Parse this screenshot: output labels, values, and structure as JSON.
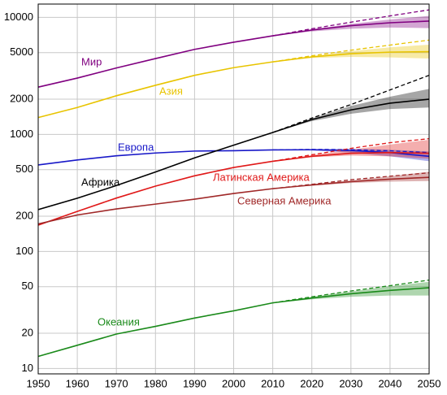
{
  "chart_data": {
    "type": "line",
    "log_y": true,
    "grid": true,
    "x": [
      1950,
      1960,
      1970,
      1980,
      1990,
      2000,
      2010,
      2020,
      2030,
      2040,
      2050
    ],
    "xlim": [
      1950,
      2050
    ],
    "xticks": [
      1950,
      1960,
      1970,
      1980,
      1990,
      2000,
      2010,
      2020,
      2030,
      2040,
      2050
    ],
    "ylim": [
      9,
      13000
    ],
    "yticks": [
      10,
      20,
      50,
      100,
      200,
      500,
      1000,
      2000,
      5000,
      10000
    ],
    "series": [
      {
        "name": "Мир",
        "color": "#800080",
        "values": [
          2536,
          3030,
          3700,
          4450,
          5330,
          6140,
          6960,
          7800,
          8500,
          9000,
          9300
        ],
        "projection_high": [
          null,
          null,
          null,
          null,
          null,
          null,
          6960,
          8000,
          9100,
          10300,
          11600
        ],
        "band_low": [
          null,
          null,
          null,
          null,
          null,
          null,
          6960,
          7600,
          8000,
          8200,
          8100
        ],
        "band_high": [
          null,
          null,
          null,
          null,
          null,
          null,
          6960,
          7900,
          8800,
          9600,
          10300
        ]
      },
      {
        "name": "Азия",
        "color": "#e8c400",
        "values": [
          1395,
          1700,
          2140,
          2630,
          3200,
          3720,
          4170,
          4600,
          4900,
          5050,
          5100
        ],
        "projection_high": [
          null,
          null,
          null,
          null,
          null,
          null,
          4170,
          4700,
          5250,
          5800,
          6400
        ],
        "band_low": [
          null,
          null,
          null,
          null,
          null,
          null,
          4170,
          4500,
          4600,
          4550,
          4450
        ],
        "band_high": [
          null,
          null,
          null,
          null,
          null,
          null,
          4170,
          4650,
          5150,
          5550,
          5850
        ]
      },
      {
        "name": "Европа",
        "color": "#1818c8",
        "values": [
          549,
          605,
          657,
          694,
          721,
          726,
          738,
          740,
          728,
          700,
          650
        ],
        "projection_high": [
          null,
          null,
          null,
          null,
          null,
          null,
          738,
          745,
          740,
          725,
          700
        ],
        "band_low": [
          null,
          null,
          null,
          null,
          null,
          null,
          738,
          730,
          700,
          650,
          590
        ],
        "band_high": [
          null,
          null,
          null,
          null,
          null,
          null,
          738,
          750,
          755,
          740,
          715
        ]
      },
      {
        "name": "Африка",
        "color": "#000000",
        "values": [
          228,
          285,
          366,
          478,
          630,
          810,
          1040,
          1340,
          1620,
          1850,
          2000
        ],
        "projection_high": [
          null,
          null,
          null,
          null,
          null,
          null,
          1040,
          1380,
          1800,
          2400,
          3200
        ],
        "band_low": [
          null,
          null,
          null,
          null,
          null,
          null,
          1040,
          1300,
          1500,
          1650,
          1700
        ],
        "band_high": [
          null,
          null,
          null,
          null,
          null,
          null,
          1040,
          1370,
          1750,
          2100,
          2450
        ]
      },
      {
        "name": "Латинская Америка",
        "color": "#e01818",
        "values": [
          168,
          220,
          286,
          362,
          443,
          522,
          590,
          650,
          690,
          700,
          690
        ],
        "projection_high": [
          null,
          null,
          null,
          null,
          null,
          null,
          590,
          670,
          760,
          850,
          920
        ],
        "band_low": [
          null,
          null,
          null,
          null,
          null,
          null,
          590,
          640,
          660,
          650,
          620
        ],
        "band_high": [
          null,
          null,
          null,
          null,
          null,
          null,
          590,
          665,
          740,
          820,
          900
        ]
      },
      {
        "name": "Северная Америка",
        "color": "#a02828",
        "values": [
          172,
          205,
          231,
          254,
          280,
          313,
          344,
          370,
          395,
          415,
          430
        ],
        "projection_high": [
          null,
          null,
          null,
          null,
          null,
          null,
          344,
          375,
          410,
          440,
          470
        ],
        "band_low": [
          null,
          null,
          null,
          null,
          null,
          null,
          344,
          365,
          385,
          395,
          400
        ],
        "band_high": [
          null,
          null,
          null,
          null,
          null,
          null,
          344,
          375,
          405,
          440,
          480
        ]
      },
      {
        "name": "Океания",
        "color": "#1a8a1a",
        "values": [
          12.7,
          15.8,
          19.7,
          22.9,
          27,
          31.1,
          36.4,
          40,
          43.5,
          46.5,
          49
        ],
        "projection_high": [
          null,
          null,
          null,
          null,
          null,
          null,
          36.4,
          41,
          46,
          51,
          57
        ],
        "band_low": [
          null,
          null,
          null,
          null,
          null,
          null,
          36.4,
          39,
          41,
          42,
          42
        ],
        "band_high": [
          null,
          null,
          null,
          null,
          null,
          null,
          36.4,
          41,
          45.5,
          50.5,
          55
        ]
      }
    ]
  }
}
